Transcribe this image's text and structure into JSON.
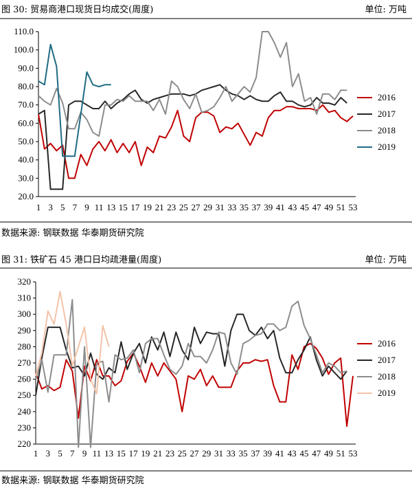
{
  "charts": [
    {
      "caption": "图 30: 贸易商港口现货日均成交(周度)",
      "unit": "单位: 万吨",
      "source": "数据来源: 钢联数据 华泰期货研究院"
    },
    {
      "caption": "图 31: 铁矿石 45 港口日均疏港量(周度)",
      "unit": "单位: 万吨",
      "source": "数据来源: 钢联数据 华泰期货研究院"
    }
  ],
  "chart_data": [
    {
      "type": "line",
      "title": "贸易商港口现货日均成交(周度)",
      "xlabel": "",
      "ylabel": "",
      "x": [
        1,
        2,
        3,
        4,
        5,
        6,
        7,
        8,
        9,
        10,
        11,
        12,
        13,
        14,
        15,
        16,
        17,
        18,
        19,
        20,
        21,
        22,
        23,
        24,
        25,
        26,
        27,
        28,
        29,
        30,
        31,
        32,
        33,
        34,
        35,
        36,
        37,
        38,
        39,
        40,
        41,
        42,
        43,
        44,
        45,
        46,
        47,
        48,
        49,
        50,
        51,
        52,
        53
      ],
      "xticks": [
        1,
        3,
        5,
        7,
        9,
        11,
        13,
        15,
        17,
        19,
        21,
        23,
        25,
        27,
        29,
        31,
        33,
        35,
        37,
        39,
        41,
        43,
        45,
        47,
        49,
        51,
        53
      ],
      "ylim": [
        20,
        110
      ],
      "yticks": [
        20.0,
        30.0,
        40.0,
        50.0,
        60.0,
        70.0,
        80.0,
        90.0,
        100.0,
        110.0
      ],
      "ytick_labels": [
        "20.0",
        "30.0",
        "40.0",
        "50.0",
        "60.0",
        "70.0",
        "80.0",
        "90.0",
        "100.0",
        "110.0"
      ],
      "legend_position": "right",
      "series": [
        {
          "name": "2016",
          "color": "#c00000",
          "values": [
            65,
            46,
            49,
            45,
            48,
            30,
            30,
            43,
            37,
            46,
            50,
            45,
            51,
            44,
            49,
            44,
            50,
            37,
            47,
            44,
            53,
            52,
            58,
            67,
            53,
            50,
            63,
            66,
            66,
            64,
            55,
            58,
            57,
            60,
            54,
            48,
            55,
            53,
            63,
            67,
            67,
            69,
            69,
            68,
            68,
            68,
            67,
            70,
            66,
            67,
            63,
            61,
            64
          ]
        },
        {
          "name": "2017",
          "color": "#262626",
          "values": [
            65,
            67,
            24,
            24,
            24,
            70,
            72,
            72,
            70,
            68,
            68,
            72,
            68,
            71,
            73,
            76,
            78,
            73,
            71,
            73,
            74,
            75,
            76,
            76,
            76,
            75,
            76,
            78,
            79,
            80,
            81,
            78,
            76,
            75,
            73,
            75,
            73,
            72,
            72,
            75,
            77,
            72,
            72,
            70,
            69,
            70,
            74,
            71,
            71,
            70,
            74,
            71,
            null
          ]
        },
        {
          "name": "2018",
          "color": "#8c8c8c",
          "values": [
            75,
            72,
            70,
            79,
            71,
            57,
            57,
            66,
            62,
            55,
            53,
            70,
            70,
            73,
            72,
            75,
            72,
            72,
            72,
            67,
            73,
            65,
            83,
            80,
            73,
            68,
            76,
            66,
            67,
            69,
            74,
            80,
            72,
            76,
            80,
            77,
            85,
            110,
            110,
            104,
            96,
            104,
            80,
            87,
            72,
            74,
            65,
            76,
            76,
            73,
            78,
            78,
            null
          ]
        },
        {
          "name": "2019",
          "color": "#1f6b82",
          "values": [
            83,
            81,
            103,
            91,
            42,
            42,
            42,
            65,
            88,
            81,
            80,
            81,
            81,
            null,
            null,
            null,
            null,
            null,
            null,
            null,
            null,
            null,
            null,
            null,
            null,
            null,
            null,
            null,
            null,
            null,
            null,
            null,
            null,
            null,
            null,
            null,
            null,
            null,
            null,
            null,
            null,
            null,
            null,
            null,
            null,
            null,
            null,
            null,
            null,
            null,
            null,
            null,
            null
          ]
        }
      ]
    },
    {
      "type": "line",
      "title": "铁矿石45港口日均疏港量(周度)",
      "xlabel": "",
      "ylabel": "",
      "x": [
        1,
        2,
        3,
        4,
        5,
        6,
        7,
        8,
        9,
        10,
        11,
        12,
        13,
        14,
        15,
        16,
        17,
        18,
        19,
        20,
        21,
        22,
        23,
        24,
        25,
        26,
        27,
        28,
        29,
        30,
        31,
        32,
        33,
        34,
        35,
        36,
        37,
        38,
        39,
        40,
        41,
        42,
        43,
        44,
        45,
        46,
        47,
        48,
        49,
        50,
        51,
        52,
        53
      ],
      "xticks": [
        1,
        3,
        5,
        7,
        9,
        11,
        13,
        15,
        17,
        19,
        21,
        23,
        25,
        27,
        29,
        31,
        33,
        35,
        37,
        39,
        41,
        43,
        45,
        47,
        49,
        51,
        53
      ],
      "ylim": [
        220,
        320
      ],
      "yticks": [
        220,
        230,
        240,
        250,
        260,
        270,
        280,
        290,
        300,
        310,
        320
      ],
      "ytick_labels": [
        "220",
        "230",
        "240",
        "250",
        "260",
        "270",
        "280",
        "290",
        "300",
        "310",
        "320"
      ],
      "legend_position": "right",
      "series": [
        {
          "name": "2016",
          "color": "#c00000",
          "values": [
            264,
            254,
            256,
            253,
            255,
            272,
            265,
            236,
            268,
            259,
            272,
            262,
            262,
            256,
            259,
            271,
            276,
            268,
            258,
            270,
            262,
            270,
            265,
            260,
            240,
            262,
            260,
            266,
            256,
            262,
            255,
            255,
            255,
            265,
            270,
            270,
            272,
            271,
            272,
            256,
            246,
            246,
            275,
            266,
            280,
            282,
            279,
            273,
            263,
            270,
            273,
            231,
            262
          ]
        },
        {
          "name": "2017",
          "color": "#262626",
          "values": [
            250,
            273,
            292,
            292,
            292,
            278,
            267,
            268,
            262,
            276,
            263,
            260,
            267,
            264,
            283,
            266,
            276,
            282,
            270,
            286,
            278,
            289,
            274,
            289,
            278,
            272,
            292,
            282,
            289,
            288,
            288,
            268,
            290,
            300,
            300,
            290,
            287,
            292,
            285,
            290,
            273,
            264,
            264,
            272,
            278,
            286,
            272,
            262,
            268,
            264,
            260,
            265,
            null
          ]
        },
        {
          "name": "2018",
          "color": "#8c8c8c",
          "values": [
            260,
            272,
            252,
            275,
            275,
            275,
            309,
            218,
            280,
            218,
            270,
            271,
            246,
            275,
            272,
            273,
            278,
            264,
            282,
            285,
            285,
            275,
            266,
            263,
            268,
            282,
            274,
            274,
            270,
            278,
            289,
            288,
            270,
            263,
            282,
            284,
            287,
            288,
            294,
            294,
            290,
            292,
            305,
            308,
            293,
            285,
            275,
            264,
            270,
            268,
            264,
            265,
            null
          ]
        },
        {
          "name": "2019",
          "color": "#f4c3a8",
          "values": [
            262,
            276,
            302,
            294,
            314,
            294,
            268,
            280,
            292,
            260,
            251,
            293,
            280,
            null,
            null,
            null,
            null,
            null,
            null,
            null,
            null,
            null,
            null,
            null,
            null,
            null,
            null,
            null,
            null,
            null,
            null,
            null,
            null,
            null,
            null,
            null,
            null,
            null,
            null,
            null,
            null,
            null,
            null,
            null,
            null,
            null,
            null,
            null,
            null,
            null,
            null,
            null,
            null
          ]
        }
      ]
    }
  ]
}
